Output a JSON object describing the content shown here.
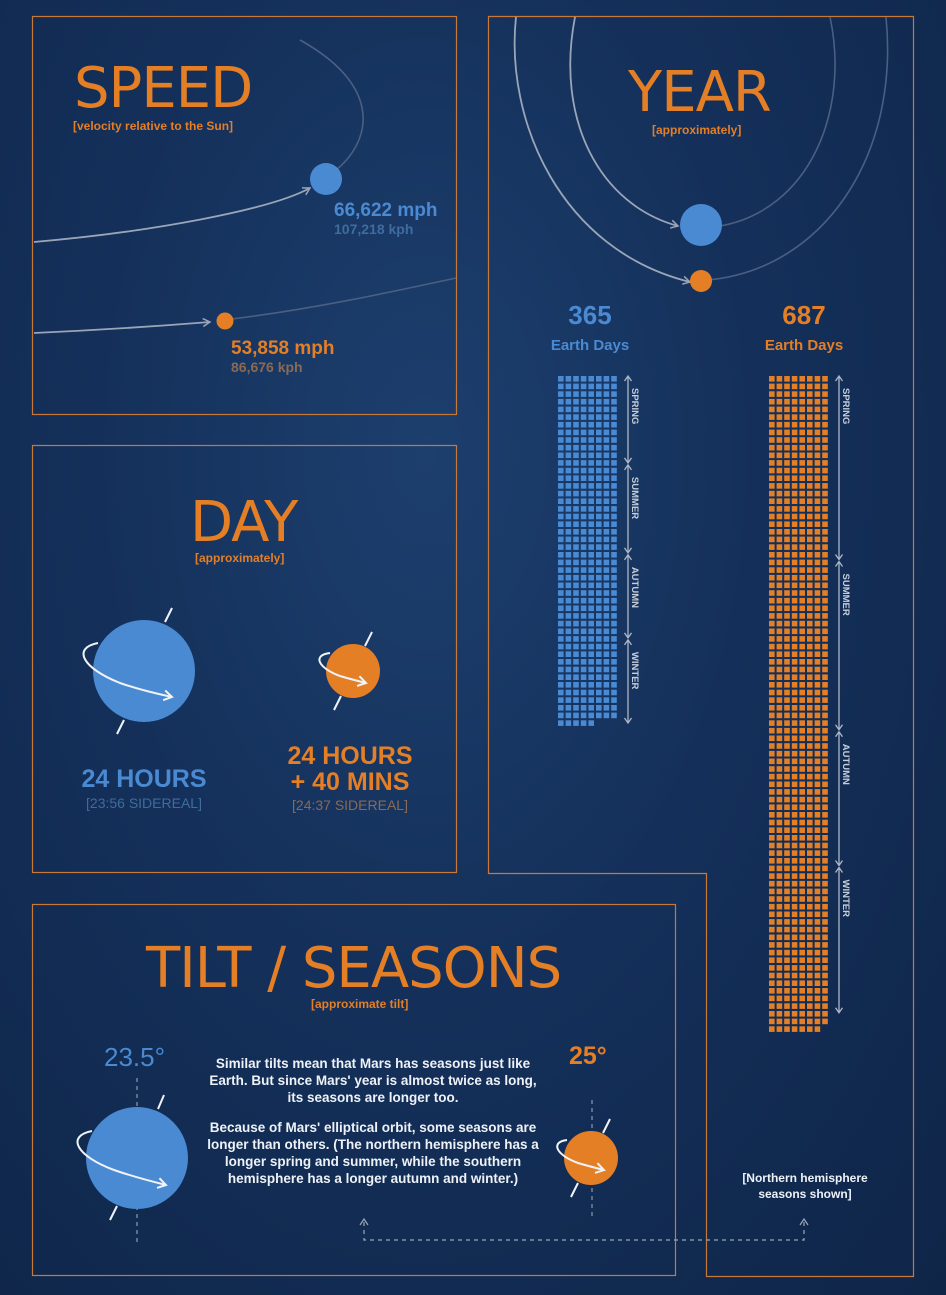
{
  "speed": {
    "title": "SPEED",
    "subtitle": "[velocity relative to the Sun]",
    "earth_mph": "66,622 mph",
    "earth_kph": "107,218 kph",
    "mars_mph": "53,858 mph",
    "mars_kph": "86,676 kph"
  },
  "year": {
    "title": "YEAR",
    "subtitle": "[approximately]",
    "earth_days": "365",
    "earth_days_label": "Earth Days",
    "mars_days": "687",
    "mars_days_label": "Earth Days",
    "earth_seasons": [
      {
        "label": "SPRING",
        "days": 93
      },
      {
        "label": "SUMMER",
        "days": 94
      },
      {
        "label": "AUTUMN",
        "days": 89
      },
      {
        "label": "WINTER",
        "days": 89
      }
    ],
    "mars_seasons": [
      {
        "label": "SPRING",
        "days": 194
      },
      {
        "label": "SUMMER",
        "days": 178
      },
      {
        "label": "AUTUMN",
        "days": 142
      },
      {
        "label": "WINTER",
        "days": 154
      }
    ],
    "note": "[Northern hemisphere seasons shown]"
  },
  "day": {
    "title": "DAY",
    "subtitle": "[approximately]",
    "earth_hours": "24 HOURS",
    "earth_sidereal": "[23:56 SIDEREAL]",
    "mars_hours_line1": "24 HOURS",
    "mars_hours_line2": "+ 40 MINS",
    "mars_sidereal": "[24:37 SIDEREAL]"
  },
  "tilt": {
    "title": "TILT / SEASONS",
    "subtitle": "[approximate tilt]",
    "earth_tilt": "23.5°",
    "mars_tilt": "25°",
    "paragraph1": "Similar tilts mean that Mars has seasons just like Earth. But since Mars' year is almost twice as long, its seasons are longer too.",
    "paragraph2": "Because of Mars' elliptical orbit, some seasons are longer than others. (The northern hemisphere has a longer spring and summer, while the southern hemisphere has a longer autumn and winter.)"
  },
  "colors": {
    "earth": "#4a8ad2",
    "mars": "#e47f26",
    "panel_border": "#c8793a"
  }
}
